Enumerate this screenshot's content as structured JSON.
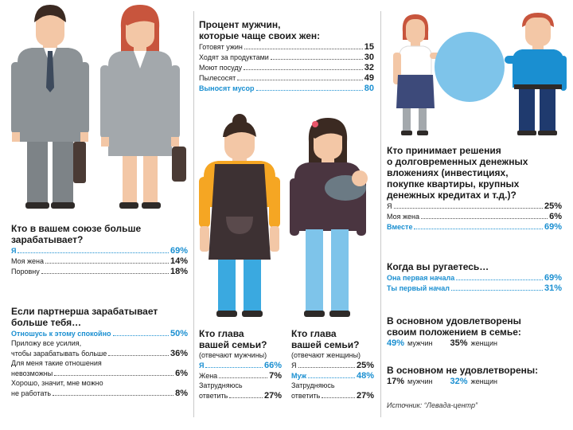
{
  "colors": {
    "accent": "#1a8fd1",
    "text": "#1a1a1a",
    "suit_gray": "#8c9296",
    "apron": "#3d3133",
    "shirt_orange": "#f5a623",
    "jeans_blue": "#3aa9e0",
    "skin": "#f3c7a6",
    "hair_red": "#c8553d",
    "hair_dark": "#3b2a22"
  },
  "q1": {
    "title_l1": "Кто в вашем союзе больше",
    "title_l2": "зарабатывает?",
    "rows": [
      {
        "label": "Я",
        "value": "69%"
      },
      {
        "label": "Моя жена",
        "value": "14%"
      },
      {
        "label": "Поровну",
        "value": "18%"
      }
    ]
  },
  "q2": {
    "title_l1": "Если партнерша зарабатывает",
    "title_l2": "больше тебя…",
    "r1": {
      "label": "Отношусь к этому спокойно",
      "value": "50%"
    },
    "r2_l1": "Приложу все усилия,",
    "r2": {
      "label": "чтобы зарабатывать больше",
      "value": "36%"
    },
    "r3_l1": "Для меня такие отношения",
    "r3": {
      "label": "невозможны",
      "value": "6%"
    },
    "r4_l1": "Хорошо, значит, мне можно",
    "r4": {
      "label": "не работать",
      "value": "8%"
    }
  },
  "q3": {
    "title_l1": "Процент мужчин,",
    "title_l2": "которые чаще своих жен:",
    "rows": [
      {
        "label": "Готовят ужин",
        "value": "15"
      },
      {
        "label": "Ходят за продуктами",
        "value": "30"
      },
      {
        "label": "Моют посуду",
        "value": "32"
      },
      {
        "label": "Пылесосят",
        "value": "49"
      },
      {
        "label": "Выносят мусор",
        "value": "80"
      }
    ]
  },
  "q4": {
    "title_l1": "Кто глава",
    "title_l2": "вашей семьи?",
    "sub": "(отвечают мужчины)",
    "rows": [
      {
        "label": "Я",
        "value": "66%"
      },
      {
        "label": "Жена",
        "value": "7%"
      }
    ],
    "r3_l1": "Затрудняюсь",
    "r3": {
      "label": "ответить",
      "value": "27%"
    }
  },
  "q5": {
    "title_l1": "Кто глава",
    "title_l2": "вашей семьи?",
    "sub": "(отвечают женщины)",
    "rows": [
      {
        "label": "Я",
        "value": "25%"
      },
      {
        "label": "Муж",
        "value": "48%"
      }
    ],
    "r3_l1": "Затрудняюсь",
    "r3": {
      "label": "ответить",
      "value": "27%"
    }
  },
  "q6": {
    "title_l1": "Кто принимает решения",
    "title_l2": "о долговременных денежных",
    "title_l3": "вложениях (инвестициях,",
    "title_l4": "покупке квартиры, крупных",
    "title_l5": "денежных кредитах и т.д.)?",
    "rows": [
      {
        "label": "Я",
        "value": "25%"
      },
      {
        "label": "Моя жена",
        "value": "6%"
      },
      {
        "label": "Вместе",
        "value": "69%"
      }
    ]
  },
  "q7": {
    "title": "Когда вы ругаетесь…",
    "rows": [
      {
        "label": "Она первая начала",
        "value": "69%"
      },
      {
        "label": "Ты первый начал",
        "value": "31%"
      }
    ]
  },
  "q8": {
    "title_l1": "В основном удовлетворены",
    "title_l2": "своим положением в семье:",
    "men_value": "49%",
    "men_label": "мужчин",
    "women_value": "35%",
    "women_label": "женщин"
  },
  "q9": {
    "title": "В основном не удовлетворены:",
    "men_value": "17%",
    "men_label": "мужчин",
    "women_value": "32%",
    "women_label": "женщин"
  },
  "source": "Источник: “Левада-центр”"
}
